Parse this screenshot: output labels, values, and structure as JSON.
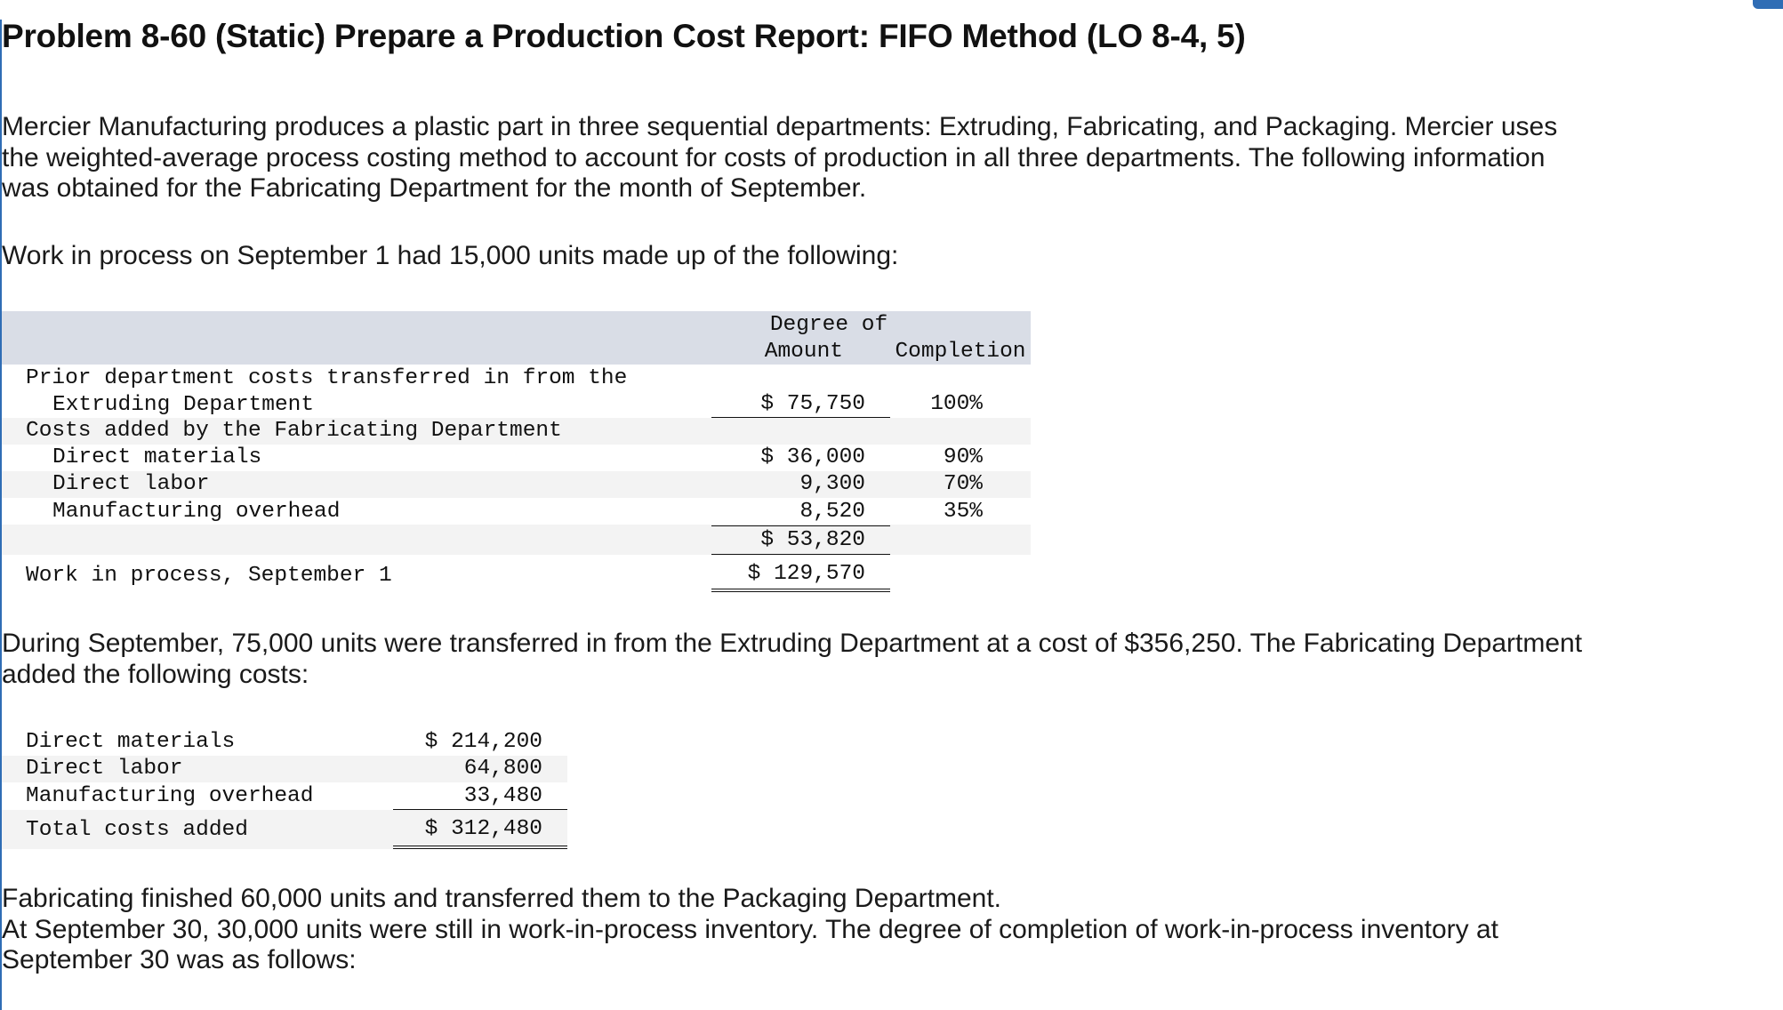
{
  "title": "Problem 8-60 (Static) Prepare a Production Cost Report: FIFO Method (LO 8-4, 5)",
  "intro": {
    "line1": "Mercier Manufacturing produces a plastic part in three sequential departments: Extruding, Fabricating, and Packaging. Mercier uses",
    "line2": "the weighted-average process costing method to account for costs of production in all three departments. The following information",
    "line3": "was obtained for the Fabricating Department for the month of September."
  },
  "wip_intro": "Work in process on September 1 had 15,000 units made up of the following:",
  "table1": {
    "col_amount": "Amount",
    "col_degree_1": "Degree of",
    "col_degree_2": "Completion",
    "prior_label_1": "Prior department costs transferred in from the",
    "prior_label_2": "Extruding Department",
    "prior_amount": "$ 75,750",
    "prior_degree": "100%",
    "added_label": "Costs added by the Fabricating Department",
    "rows": [
      {
        "label": "Direct materials",
        "amount": "$ 36,000",
        "degree": "90%"
      },
      {
        "label": "Direct labor",
        "amount": "9,300",
        "degree": "70%"
      },
      {
        "label": "Manufacturing overhead",
        "amount": "8,520",
        "degree": "35%"
      }
    ],
    "subtotal": "$ 53,820",
    "wip_label": "Work in process, September 1",
    "wip_total": "$ 129,570"
  },
  "september_text": {
    "line1": "During September, 75,000 units were transferred in from the Extruding Department at a cost of $356,250. The Fabricating Department",
    "line2": "added the following costs:"
  },
  "table2": {
    "rows": [
      {
        "label": "Direct materials",
        "amount": "$ 214,200"
      },
      {
        "label": "Direct labor",
        "amount": "64,800"
      },
      {
        "label": "Manufacturing overhead",
        "amount": "33,480"
      }
    ],
    "total_label": "Total costs added",
    "total_amount": "$ 312,480"
  },
  "closing": {
    "line1": "Fabricating finished 60,000 units and transferred them to the Packaging Department.",
    "line2": "At September 30, 30,000 units were still in work-in-process inventory. The degree of completion of work-in-process inventory at",
    "line3": "September 30 was as follows:"
  }
}
